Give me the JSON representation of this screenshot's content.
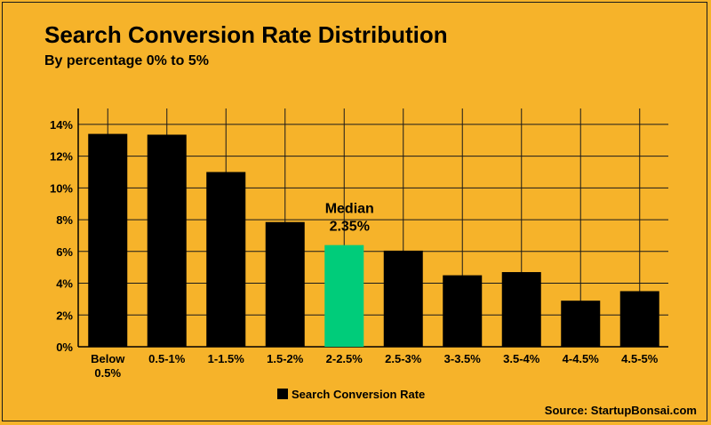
{
  "chart_data": {
    "type": "bar",
    "title": "Search Conversion Rate Distribution",
    "subtitle": "By percentage 0% to 5%",
    "categories": [
      "Below 0.5%",
      "0.5-1%",
      "1-1.5%",
      "1.5-2%",
      "2-2.5%",
      "2.5-3%",
      "3-3.5%",
      "3.5-4%",
      "4-4.5%",
      "4.5-5%"
    ],
    "category_lines": [
      [
        "Below",
        "0.5%"
      ],
      [
        "0.5-1%"
      ],
      [
        "1-1.5%"
      ],
      [
        "1.5-2%"
      ],
      [
        "2-2.5%"
      ],
      [
        "2.5-3%"
      ],
      [
        "3-3.5%"
      ],
      [
        "3.5-4%"
      ],
      [
        "4-4.5%"
      ],
      [
        "4.5-5%"
      ]
    ],
    "series": [
      {
        "name": "Search Conversion Rate",
        "values": [
          13.4,
          13.35,
          11.0,
          7.85,
          6.4,
          6.05,
          4.5,
          4.7,
          2.9,
          3.5
        ]
      }
    ],
    "ylim": [
      0,
      15
    ],
    "yticks": [
      0,
      2,
      4,
      6,
      8,
      10,
      12,
      14
    ],
    "ytick_labels": [
      "0%",
      "2%",
      "4%",
      "6%",
      "8%",
      "10%",
      "12%",
      "14%"
    ],
    "grid": true,
    "legend": "bottom-center",
    "highlight_index": 4,
    "annotation": {
      "lines": [
        "Median",
        "2.35%"
      ],
      "category_index": 4
    },
    "xlabel": "",
    "ylabel": ""
  },
  "source": "Source: StartupBonsai.com",
  "colors": {
    "background": "#f6b32a",
    "bar": "#000000",
    "highlight": "#00cc7a",
    "grid": "#1a1a1a"
  }
}
